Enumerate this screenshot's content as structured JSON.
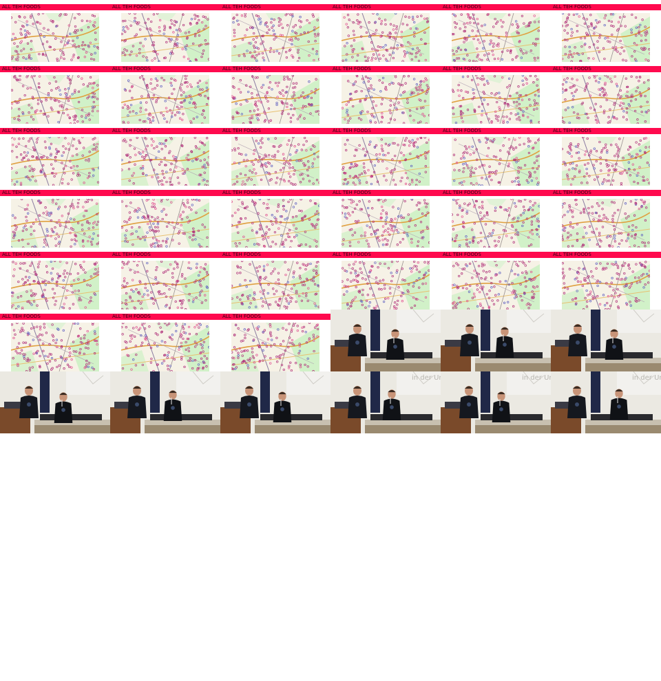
{
  "thumbnail_label": "ALL TEH FOODS",
  "slide_count": 33,
  "video_frame_count": 9,
  "projection_caption": "in der Ur",
  "colors": {
    "banner": "#ff0a4e",
    "map_dots": "#b0307a",
    "map_green": "#c8f0c0",
    "wall": "#ebe9e2",
    "podium": "#7a4a2a"
  }
}
